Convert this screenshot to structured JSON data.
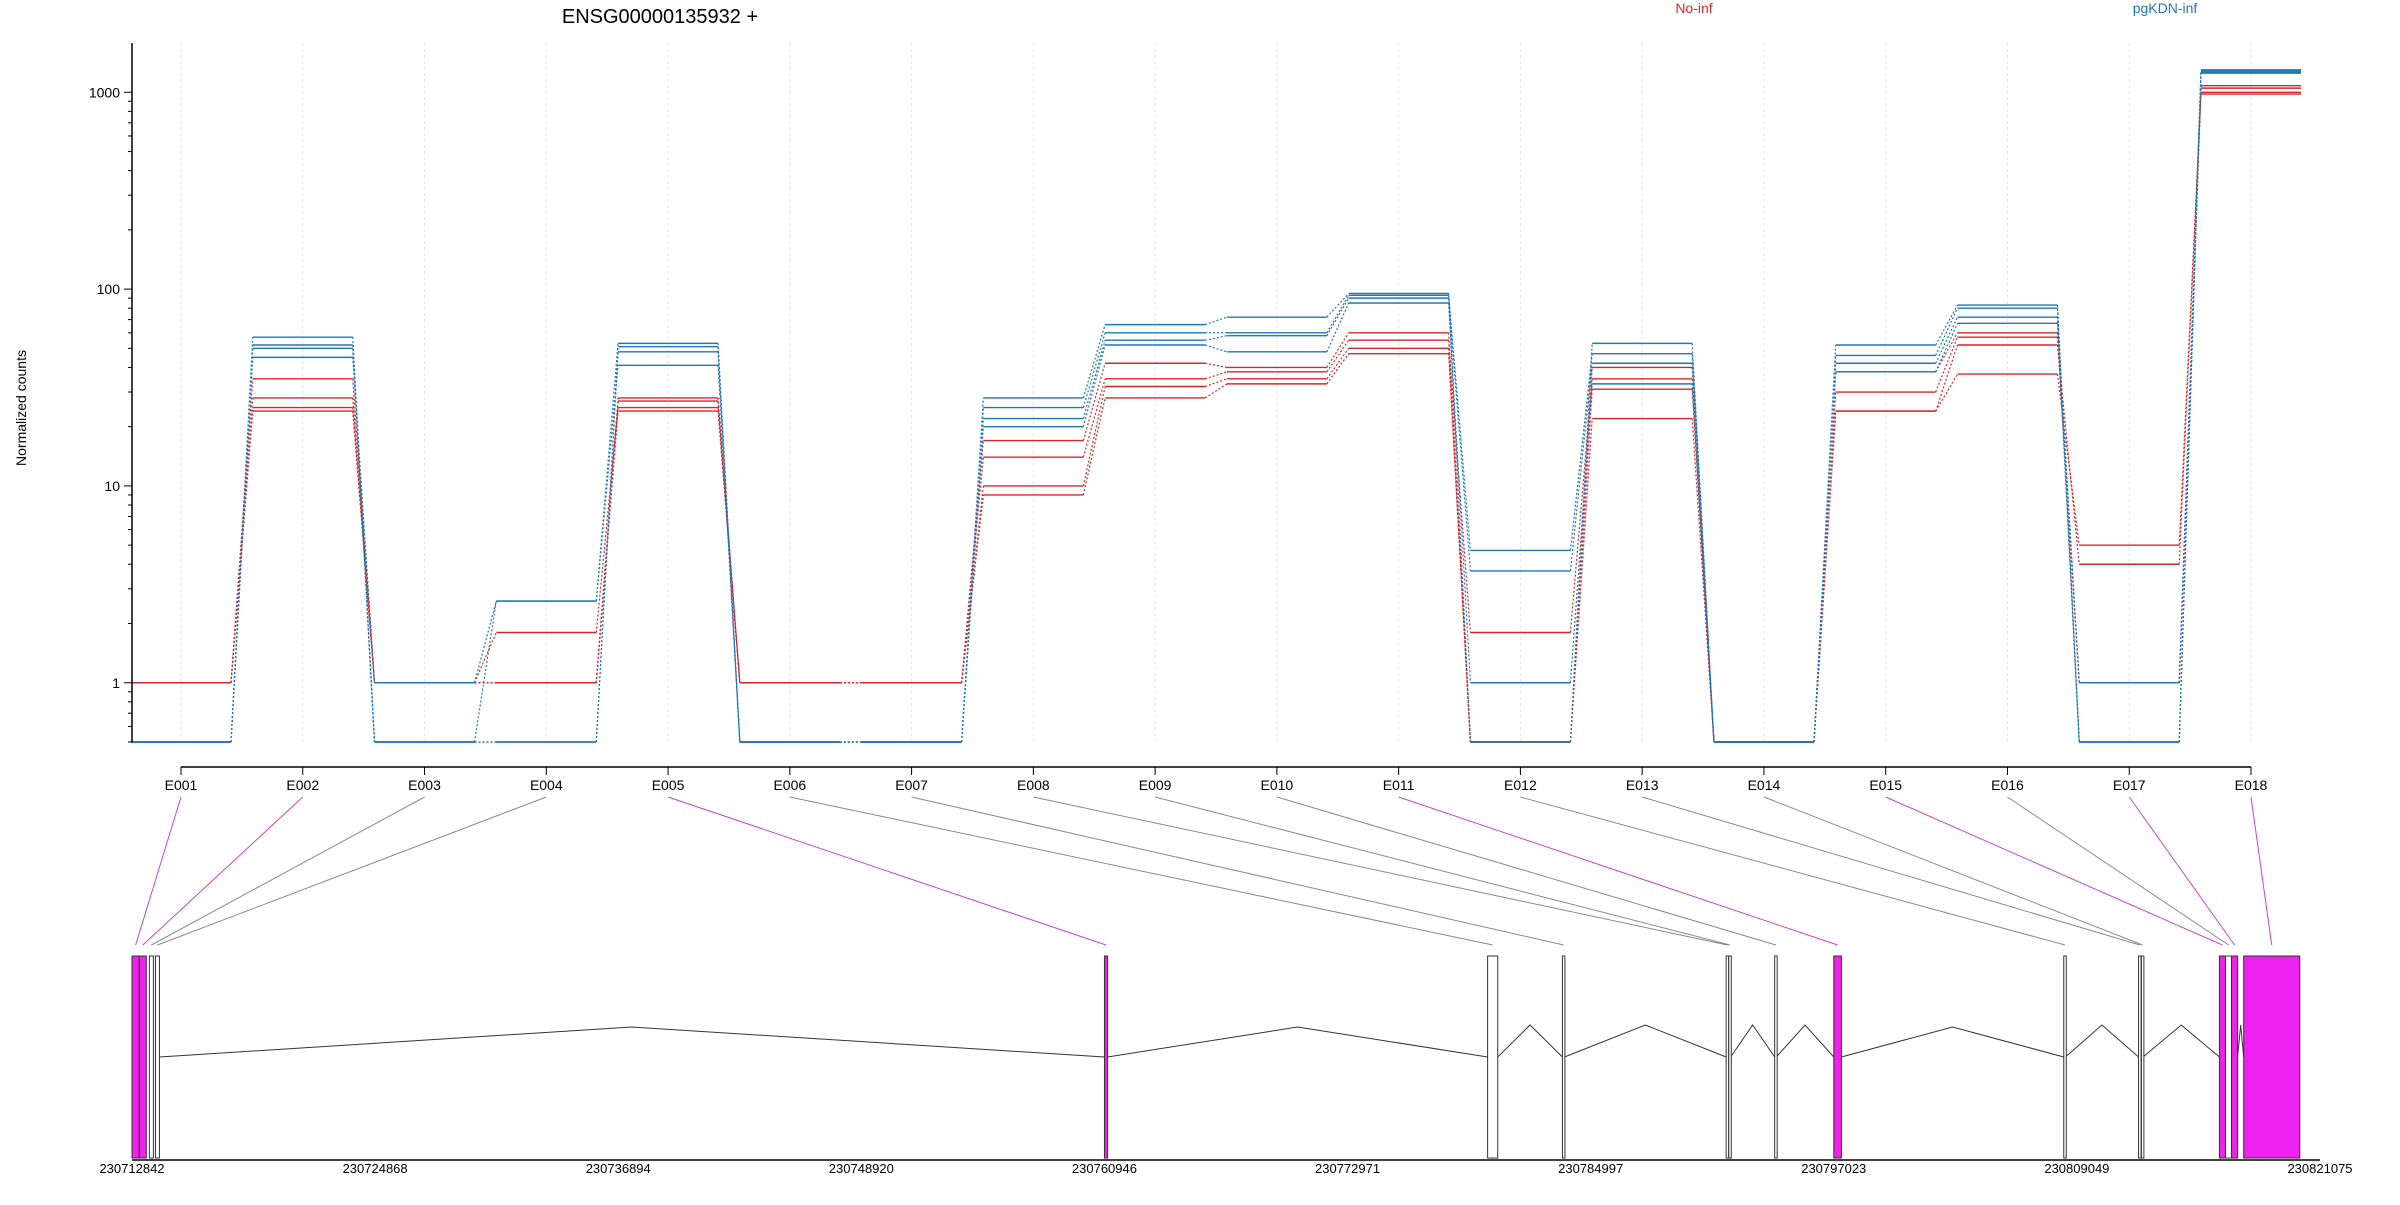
{
  "title": "ENSG00000135932 +",
  "legend": [
    "No-inf",
    "pgKDN-inf"
  ],
  "colors": {
    "No-inf": "#d62728",
    "pgKDN-inf": "#1f77b4",
    "highlight": "#ee22ee"
  },
  "chart_data": [
    {
      "type": "line",
      "title": "ENSG00000135932 +",
      "ylabel": "Normalized counts",
      "yscale": "log",
      "y_ticks": [
        "1",
        "10",
        "100",
        "1000"
      ],
      "categories": [
        "E001",
        "E002",
        "E003",
        "E004",
        "E005",
        "E006",
        "E007",
        "E008",
        "E009",
        "E010",
        "E011",
        "E012",
        "E013",
        "E014",
        "E015",
        "E016",
        "E017",
        "E018"
      ],
      "legend_placement": "top-right",
      "grid": "vertical-only",
      "series": [
        {
          "name": "No-inf",
          "values": [
            1,
            24,
            1,
            1,
            24,
            1,
            1,
            9,
            28,
            33,
            47,
            0.5,
            22,
            0.5,
            24,
            37,
            5,
            980
          ]
        },
        {
          "name": "No-inf",
          "values": [
            1,
            25,
            1,
            1.8,
            25,
            1,
            1,
            10,
            32,
            35,
            50,
            0.5,
            31,
            0.5,
            24,
            52,
            4,
            1000
          ]
        },
        {
          "name": "No-inf",
          "values": [
            1,
            28,
            1,
            1,
            27,
            1,
            1,
            14,
            35,
            38,
            55,
            1.8,
            35,
            0.5,
            30,
            57,
            1,
            1050
          ]
        },
        {
          "name": "No-inf",
          "values": [
            1,
            35,
            1,
            1,
            28,
            1,
            1,
            17,
            42,
            40,
            60,
            0.5,
            40,
            0.5,
            38,
            60,
            1,
            1080
          ]
        },
        {
          "name": "pgKDN-inf",
          "values": [
            0.5,
            45,
            1,
            2.6,
            41,
            0.5,
            0.5,
            20,
            52,
            48,
            85,
            1,
            33,
            0.5,
            38,
            67,
            0.5,
            1250
          ]
        },
        {
          "name": "pgKDN-inf",
          "values": [
            0.5,
            50,
            0.5,
            0.5,
            48,
            0.5,
            0.5,
            22,
            55,
            58,
            90,
            3.7,
            42,
            0.5,
            42,
            72,
            1,
            1270
          ]
        },
        {
          "name": "pgKDN-inf",
          "values": [
            0.5,
            52,
            0.5,
            0.5,
            51,
            0.5,
            0.5,
            25,
            60,
            60,
            93,
            4.7,
            47,
            0.5,
            46,
            80,
            0.5,
            1290
          ]
        },
        {
          "name": "pgKDN-inf",
          "values": [
            0.5,
            57,
            0.5,
            2.6,
            53,
            0.5,
            0.5,
            28,
            66,
            72,
            95,
            0.5,
            53,
            0.5,
            52,
            83,
            0.5,
            1300
          ]
        }
      ]
    },
    {
      "type": "gene-model",
      "axis_ticks": [
        "230712842",
        "230724868",
        "230736894",
        "230748920",
        "230760946",
        "230772971",
        "230784997",
        "230797023",
        "230809049",
        "230821075"
      ],
      "exons": [
        {
          "id": "E001",
          "start": 230712842,
          "end": 230713200,
          "highlight": true
        },
        {
          "id": "E002",
          "start": 230713200,
          "end": 230713550,
          "highlight": true
        },
        {
          "id": "E003",
          "start": 230713700,
          "end": 230713900,
          "highlight": false
        },
        {
          "id": "E004",
          "start": 230714000,
          "end": 230714200,
          "highlight": false
        },
        {
          "id": "E005",
          "start": 230760946,
          "end": 230761100,
          "highlight": true
        },
        {
          "id": "E006",
          "start": 230779900,
          "end": 230780400,
          "highlight": false
        },
        {
          "id": "E007",
          "start": 230783600,
          "end": 230783700,
          "highlight": false
        },
        {
          "id": "E008",
          "start": 230791700,
          "end": 230791780,
          "highlight": false
        },
        {
          "id": "E009",
          "start": 230791830,
          "end": 230791920,
          "highlight": false
        },
        {
          "id": "E010",
          "start": 230794100,
          "end": 230794180,
          "highlight": false
        },
        {
          "id": "E011",
          "start": 230797023,
          "end": 230797400,
          "highlight": true
        },
        {
          "id": "E012",
          "start": 230808400,
          "end": 230808480,
          "highlight": false
        },
        {
          "id": "E013",
          "start": 230812100,
          "end": 230812180,
          "highlight": false
        },
        {
          "id": "E014",
          "start": 230812240,
          "end": 230812320,
          "highlight": false
        },
        {
          "id": "E015",
          "start": 230816100,
          "end": 230816400,
          "highlight": true
        },
        {
          "id": "E016",
          "start": 230816400,
          "end": 230816700,
          "highlight": false
        },
        {
          "id": "E017",
          "start": 230816700,
          "end": 230817000,
          "highlight": true
        },
        {
          "id": "E018",
          "start": 230817300,
          "end": 230820075,
          "highlight": true
        }
      ]
    }
  ]
}
